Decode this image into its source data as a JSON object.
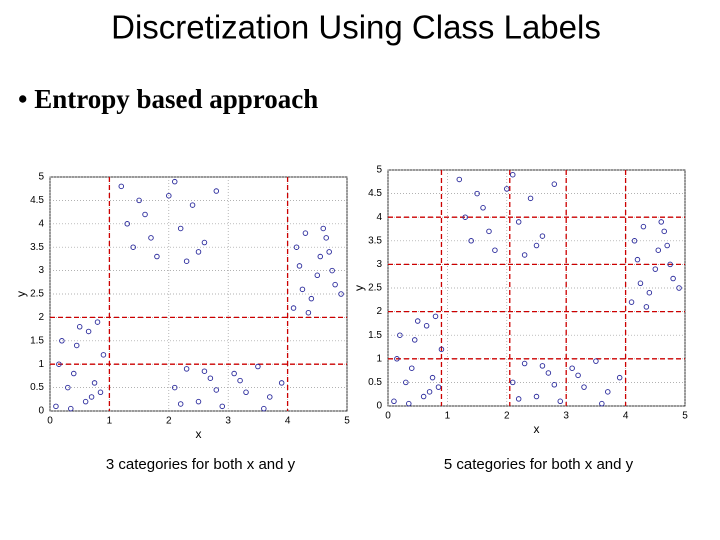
{
  "slide": {
    "title": "Discretization Using Class Labels",
    "bullet": "• Entropy based approach"
  },
  "chart_data": [
    {
      "type": "scatter",
      "xlabel": "x",
      "ylabel": "y",
      "caption": "3 categories for both x and y",
      "color": "#2a2a9c",
      "cut_color": "#cc0000",
      "grid": true,
      "xlim": [
        0,
        5
      ],
      "ylim": [
        0,
        5
      ],
      "xticks": [
        0,
        1,
        2,
        3,
        4,
        5
      ],
      "yticks": [
        0,
        0.5,
        1,
        1.5,
        2,
        2.5,
        3,
        3.5,
        4,
        4.5,
        5
      ],
      "x_cuts": [
        1,
        4
      ],
      "y_cuts": [
        1,
        2
      ],
      "x": [
        0.1,
        0.3,
        0.5,
        0.7,
        0.9,
        0.2,
        0.4,
        0.6,
        0.8,
        0.15,
        0.45,
        0.75,
        0.35,
        0.65,
        0.85,
        1.2,
        1.4,
        1.6,
        1.8,
        2.0,
        2.2,
        2.4,
        2.6,
        2.8,
        1.3,
        1.7,
        2.1,
        2.5,
        1.5,
        2.3,
        2.1,
        2.3,
        2.5,
        2.7,
        2.9,
        3.1,
        3.3,
        3.5,
        3.7,
        3.9,
        2.2,
        2.8,
        3.2,
        3.6,
        2.6,
        4.1,
        4.3,
        4.5,
        4.7,
        4.9,
        4.2,
        4.4,
        4.6,
        4.8,
        4.15,
        4.35,
        4.55,
        4.75,
        4.25,
        4.65
      ],
      "y": [
        0.1,
        0.5,
        1.8,
        0.3,
        1.2,
        1.5,
        0.8,
        0.2,
        1.9,
        1.0,
        1.4,
        0.6,
        0.05,
        1.7,
        0.4,
        4.8,
        3.5,
        4.2,
        3.3,
        4.6,
        3.9,
        4.4,
        3.6,
        4.7,
        4.0,
        3.7,
        4.9,
        3.4,
        4.5,
        3.2,
        0.5,
        0.9,
        0.2,
        0.7,
        0.1,
        0.8,
        0.4,
        0.95,
        0.3,
        0.6,
        0.15,
        0.45,
        0.65,
        0.05,
        0.85,
        2.2,
        3.8,
        2.9,
        3.4,
        2.5,
        3.1,
        2.4,
        3.9,
        2.7,
        3.5,
        2.1,
        3.3,
        3.0,
        2.6,
        3.7
      ]
    },
    {
      "type": "scatter",
      "xlabel": "x",
      "ylabel": "y",
      "caption": "5 categories for both x and y",
      "color": "#2a2a9c",
      "cut_color": "#cc0000",
      "grid": true,
      "xlim": [
        0,
        5
      ],
      "ylim": [
        0,
        5
      ],
      "xticks": [
        0,
        1,
        2,
        3,
        4,
        5
      ],
      "yticks": [
        0,
        0.5,
        1,
        1.5,
        2,
        2.5,
        3,
        3.5,
        4,
        4.5,
        5
      ],
      "x_cuts": [
        0.9,
        2.05,
        3,
        4
      ],
      "y_cuts": [
        1,
        2,
        3,
        4
      ],
      "x": [
        0.1,
        0.3,
        0.5,
        0.7,
        0.9,
        0.2,
        0.4,
        0.6,
        0.8,
        0.15,
        0.45,
        0.75,
        0.35,
        0.65,
        0.85,
        1.2,
        1.4,
        1.6,
        1.8,
        2.0,
        2.2,
        2.4,
        2.6,
        2.8,
        1.3,
        1.7,
        2.1,
        2.5,
        1.5,
        2.3,
        2.1,
        2.3,
        2.5,
        2.7,
        2.9,
        3.1,
        3.3,
        3.5,
        3.7,
        3.9,
        2.2,
        2.8,
        3.2,
        3.6,
        2.6,
        4.1,
        4.3,
        4.5,
        4.7,
        4.9,
        4.2,
        4.4,
        4.6,
        4.8,
        4.15,
        4.35,
        4.55,
        4.75,
        4.25,
        4.65
      ],
      "y": [
        0.1,
        0.5,
        1.8,
        0.3,
        1.2,
        1.5,
        0.8,
        0.2,
        1.9,
        1.0,
        1.4,
        0.6,
        0.05,
        1.7,
        0.4,
        4.8,
        3.5,
        4.2,
        3.3,
        4.6,
        3.9,
        4.4,
        3.6,
        4.7,
        4.0,
        3.7,
        4.9,
        3.4,
        4.5,
        3.2,
        0.5,
        0.9,
        0.2,
        0.7,
        0.1,
        0.8,
        0.4,
        0.95,
        0.3,
        0.6,
        0.15,
        0.45,
        0.65,
        0.05,
        0.85,
        2.2,
        3.8,
        2.9,
        3.4,
        2.5,
        3.1,
        2.4,
        3.9,
        2.7,
        3.5,
        2.1,
        3.3,
        3.0,
        2.6,
        3.7
      ]
    }
  ]
}
